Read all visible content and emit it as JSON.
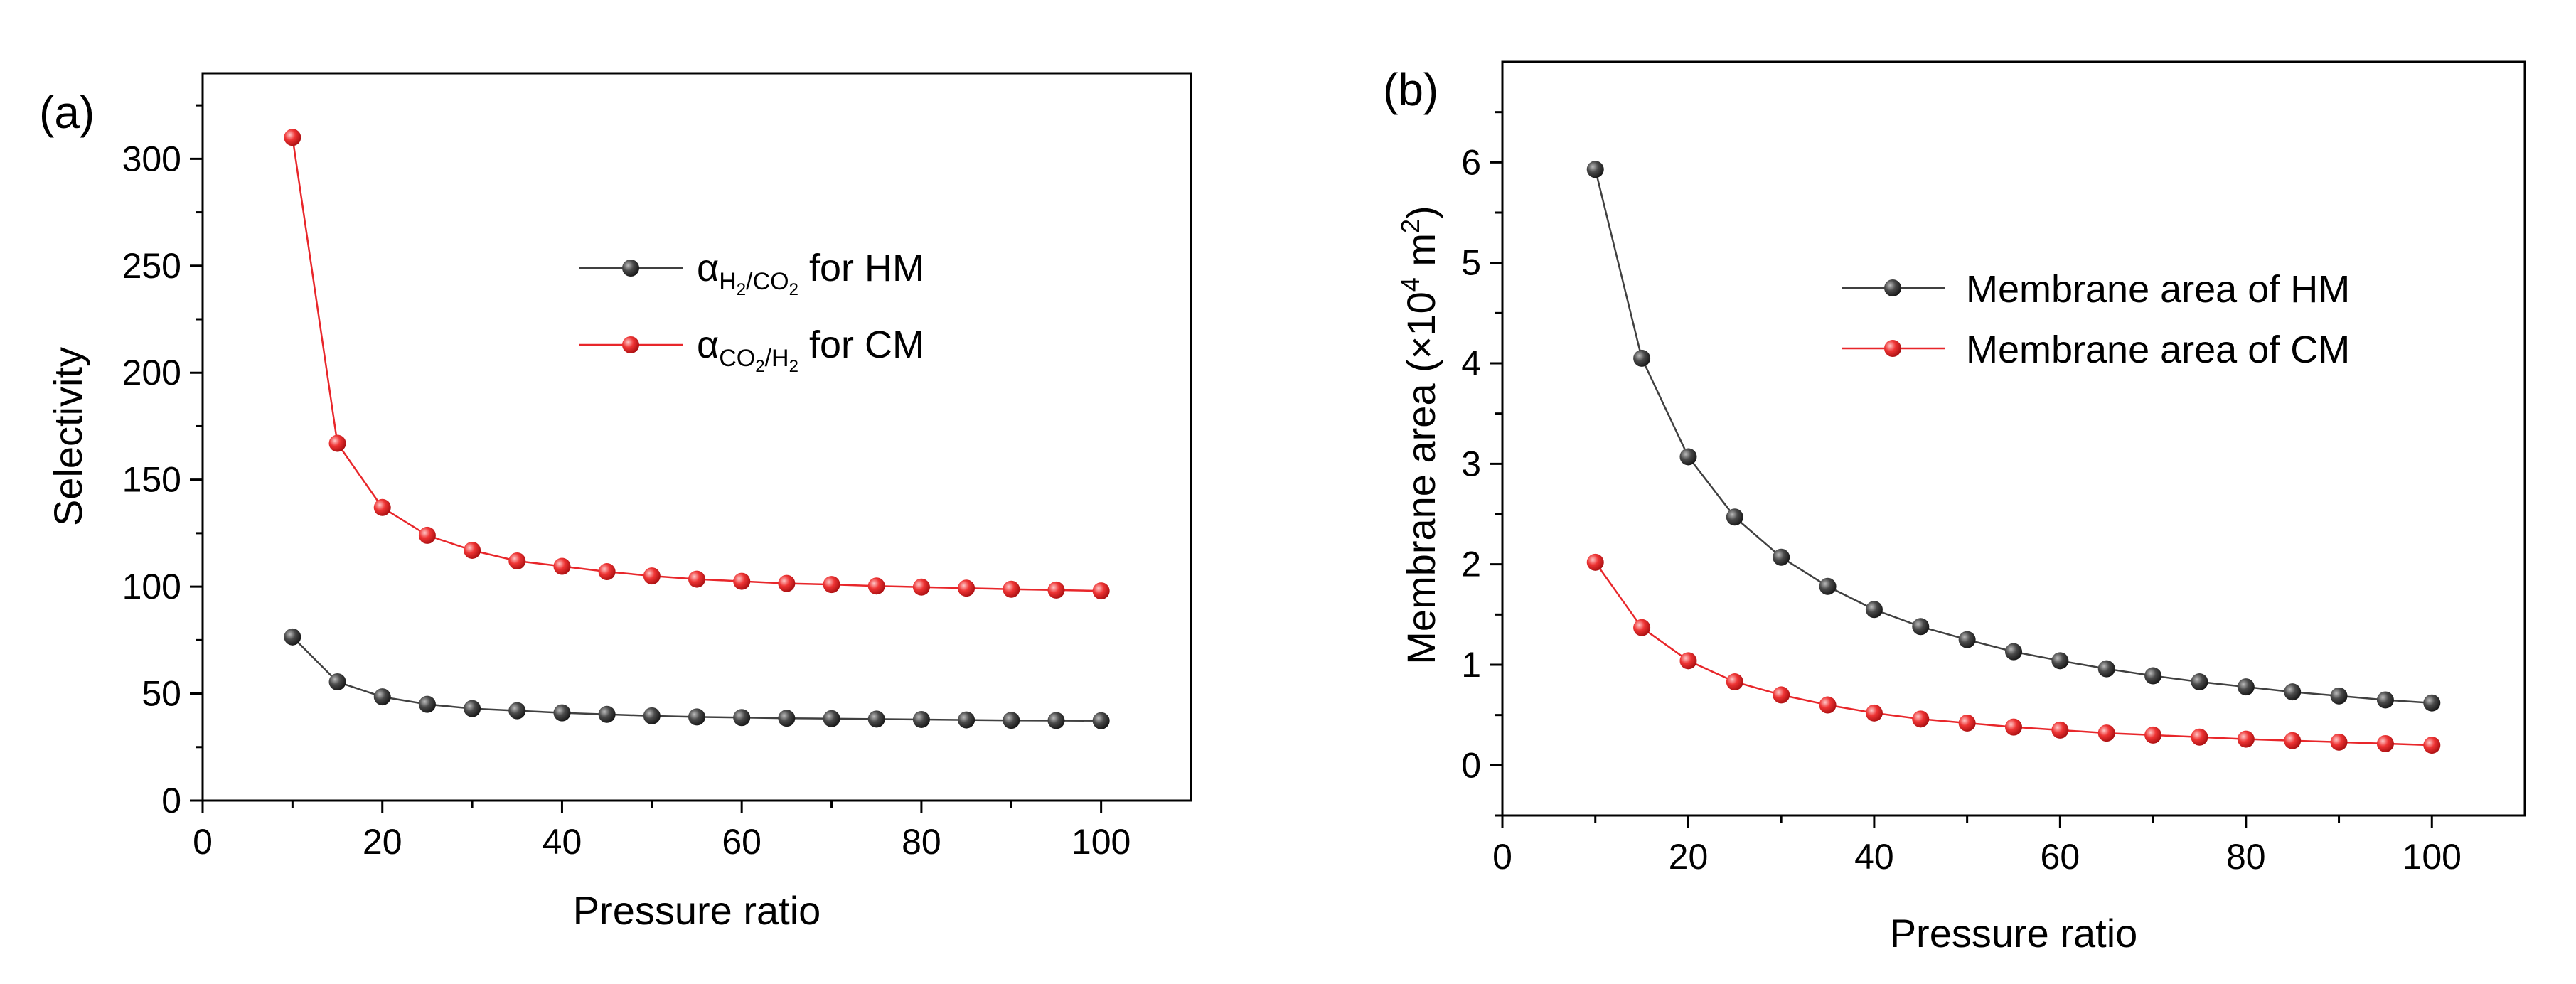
{
  "chart_data": [
    {
      "panel": "(a)",
      "type": "line",
      "xlabel": "Pressure ratio",
      "ylabel": "Selectivity",
      "xlim": [
        0,
        110
      ],
      "ylim": [
        0,
        340
      ],
      "xticks": [
        "0",
        "20",
        "40",
        "60",
        "80",
        "100"
      ],
      "yticks": [
        "0",
        "50",
        "100",
        "150",
        "200",
        "250",
        "300"
      ],
      "legend_position": "upper-right-center",
      "x": [
        10,
        15,
        20,
        25,
        30,
        35,
        40,
        45,
        50,
        55,
        60,
        65,
        70,
        75,
        80,
        85,
        90,
        95,
        100
      ],
      "series": [
        {
          "name": "α H2/CO2 for HM",
          "legend": {
            "symbol": "α",
            "sub_a": "H",
            "sub_a_sub": "2",
            "slash": "/",
            "sub_b": "CO",
            "sub_b_sub": "2",
            "suffix": " for HM"
          },
          "color": "#404040",
          "marker": "#3a3a3a",
          "values": [
            76.5,
            55.5,
            48.5,
            45,
            43,
            42,
            41,
            40.3,
            39.6,
            39.1,
            38.8,
            38.5,
            38.3,
            38.1,
            37.9,
            37.7,
            37.5,
            37.4,
            37.3
          ]
        },
        {
          "name": "α CO2/H2 for CM",
          "legend": {
            "symbol": "α",
            "sub_a": "CO",
            "sub_a_sub": "2",
            "slash": "/",
            "sub_b": "H",
            "sub_b_sub": "2",
            "suffix": " for CM"
          },
          "color": "#e8262a",
          "marker": "#e8262a",
          "values": [
            310,
            167,
            137,
            124,
            117,
            112,
            109.5,
            107,
            105,
            103.5,
            102.5,
            101.5,
            101,
            100.3,
            99.8,
            99.3,
            98.8,
            98.4,
            98
          ]
        }
      ]
    },
    {
      "panel": "(b)",
      "type": "line",
      "xlabel": "Pressure ratio",
      "ylabel": "Membrane area (×10",
      "ylabel_sup": "4",
      "ylabel_unit": " m",
      "ylabel_unit_sup": "2",
      "ylabel_close": ")",
      "xlim": [
        0,
        110
      ],
      "ylim": [
        -0.5,
        7
      ],
      "xticks": [
        "0",
        "20",
        "40",
        "60",
        "80",
        "100"
      ],
      "yticks": [
        "0",
        "1",
        "2",
        "3",
        "4",
        "5",
        "6"
      ],
      "legend_position": "upper-right",
      "x": [
        10,
        15,
        20,
        25,
        30,
        35,
        40,
        45,
        50,
        55,
        60,
        65,
        70,
        75,
        80,
        85,
        90,
        95,
        100
      ],
      "series": [
        {
          "name": "Membrane area of HM",
          "color": "#404040",
          "marker": "#3a3a3a",
          "values": [
            5.93,
            4.05,
            3.07,
            2.47,
            2.07,
            1.78,
            1.55,
            1.38,
            1.25,
            1.13,
            1.04,
            0.96,
            0.89,
            0.83,
            0.78,
            0.73,
            0.69,
            0.65,
            0.62
          ]
        },
        {
          "name": "Membrane area of CM",
          "color": "#e8262a",
          "marker": "#e8262a",
          "values": [
            2.02,
            1.37,
            1.04,
            0.83,
            0.7,
            0.6,
            0.52,
            0.46,
            0.42,
            0.38,
            0.35,
            0.32,
            0.3,
            0.28,
            0.26,
            0.245,
            0.23,
            0.215,
            0.2
          ]
        }
      ]
    }
  ]
}
